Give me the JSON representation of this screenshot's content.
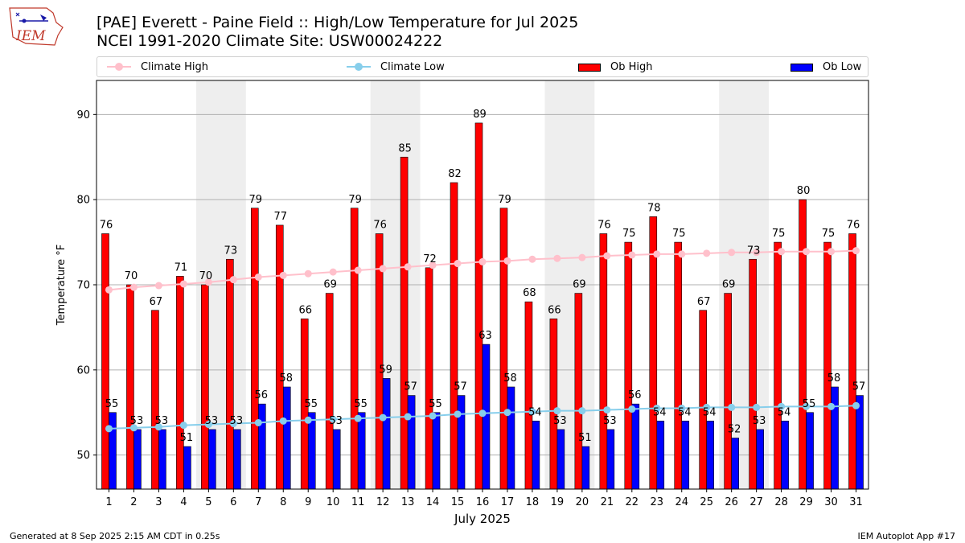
{
  "logo": {
    "text": "IEM"
  },
  "header": {
    "title_line1": "[PAE] Everett - Paine Field :: High/Low Temperature for Jul 2025",
    "title_line2": "NCEI 1991-2020 Climate Site: USW00024222"
  },
  "footer": {
    "generated": "Generated at 8 Sep 2025 2:15 AM CDT in 0.25s",
    "app": "IEM Autoplot App #17"
  },
  "colors": {
    "ob_high": "#ff0000",
    "ob_low": "#0000ff",
    "climate_high": "#ffc0cb",
    "climate_low": "#87ceeb",
    "weekend_shade": "#eeeeee",
    "grid": "#b0b0b0"
  },
  "chart_data": {
    "type": "bar",
    "xlabel": "July 2025",
    "ylabel": "Temperature °F",
    "ylim": [
      46,
      94
    ],
    "yticks": [
      50,
      60,
      70,
      80,
      90
    ],
    "grid": "horizontal",
    "legend_position": "top",
    "shaded_days": [
      [
        5,
        6
      ],
      [
        12,
        13
      ],
      [
        19,
        20
      ],
      [
        26,
        27
      ]
    ],
    "categories": [
      "1",
      "2",
      "3",
      "4",
      "5",
      "6",
      "7",
      "8",
      "9",
      "10",
      "11",
      "12",
      "13",
      "14",
      "15",
      "16",
      "17",
      "18",
      "19",
      "20",
      "21",
      "22",
      "23",
      "24",
      "25",
      "26",
      "27",
      "28",
      "29",
      "30",
      "31"
    ],
    "series": [
      {
        "name": "Ob High",
        "kind": "bar",
        "values": [
          76,
          70,
          67,
          71,
          70,
          73,
          79,
          77,
          66,
          69,
          79,
          76,
          85,
          72,
          82,
          89,
          79,
          68,
          66,
          69,
          76,
          75,
          78,
          75,
          67,
          69,
          73,
          75,
          80,
          75,
          76
        ]
      },
      {
        "name": "Ob Low",
        "kind": "bar",
        "values": [
          55,
          53,
          53,
          51,
          53,
          53,
          56,
          58,
          55,
          53,
          55,
          59,
          57,
          55,
          57,
          63,
          58,
          54,
          53,
          51,
          53,
          56,
          54,
          54,
          54,
          52,
          53,
          54,
          55,
          58,
          57
        ]
      },
      {
        "name": "Climate High",
        "kind": "line",
        "values": [
          69.4,
          69.7,
          69.9,
          70.1,
          70.3,
          70.6,
          70.9,
          71.1,
          71.3,
          71.5,
          71.7,
          71.9,
          72.1,
          72.3,
          72.5,
          72.7,
          72.8,
          73.0,
          73.1,
          73.2,
          73.4,
          73.5,
          73.6,
          73.6,
          73.7,
          73.8,
          73.8,
          73.9,
          73.9,
          73.9,
          74.0
        ]
      },
      {
        "name": "Climate Low",
        "kind": "line",
        "values": [
          53.1,
          53.2,
          53.3,
          53.5,
          53.6,
          53.7,
          53.8,
          54.0,
          54.1,
          54.2,
          54.3,
          54.4,
          54.5,
          54.6,
          54.8,
          54.9,
          55.0,
          55.1,
          55.2,
          55.2,
          55.3,
          55.4,
          55.5,
          55.5,
          55.6,
          55.6,
          55.6,
          55.7,
          55.7,
          55.7,
          55.8
        ]
      }
    ]
  }
}
